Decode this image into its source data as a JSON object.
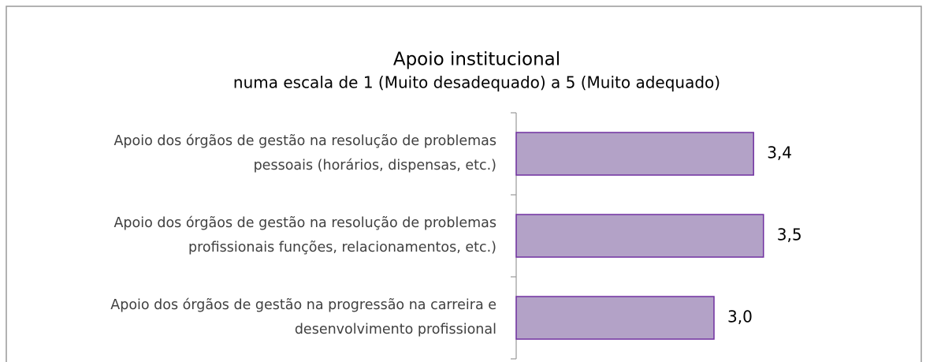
{
  "chart_data": {
    "type": "barh",
    "title": "Apoio institucional",
    "subtitle": "numa escala de 1 (Muito desadequado) a 5 (Muito adequado)",
    "categories": [
      "Apoio dos órgãos de gestão na resolução de problemas pessoais (horários, dispensas, etc.)",
      "Apoio dos órgãos de gestão na resolução de problemas profissionais funções, relacionamentos, etc.)",
      "Apoio dos órgãos de gestão na progressão na carreira e desenvolvimento profissional"
    ],
    "values": [
      3.4,
      3.5,
      3.0
    ],
    "value_labels": [
      "3,4",
      "3,5",
      "3,0"
    ],
    "color": "#b3a2c7",
    "edge_color": "#7030a0",
    "xlim": [
      1,
      5
    ]
  }
}
